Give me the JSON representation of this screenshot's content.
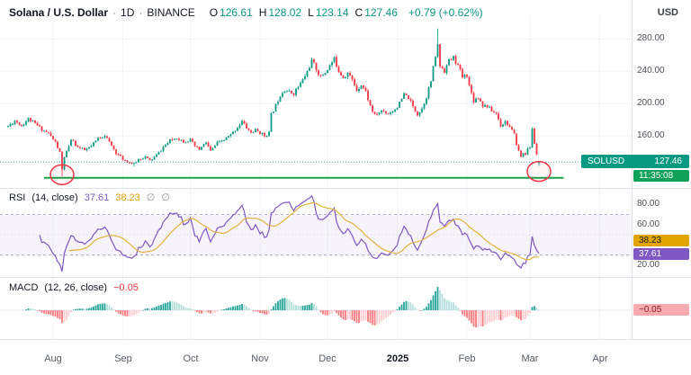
{
  "header": {
    "symbol_title": "Solana / U.S. Dollar",
    "separator": "·",
    "interval": "1D",
    "exchange": "BINANCE",
    "ohlc": [
      {
        "label": "O",
        "value": "126.61"
      },
      {
        "label": "H",
        "value": "128.02"
      },
      {
        "label": "L",
        "value": "123.14"
      },
      {
        "label": "C",
        "value": "127.46"
      }
    ],
    "change": "+0.79 (+0.62%)",
    "currency_button": "USD"
  },
  "price_axis": {
    "ticks": [
      280,
      240,
      200,
      160
    ],
    "price_label": {
      "symbol": "SOLUSD",
      "price": "127.46"
    },
    "countdown": "11:35:08"
  },
  "rsi_panel": {
    "title": "RSI",
    "params": "(14, close)",
    "value": "37.61",
    "ma_value": "38.23",
    "empty_values": [
      "∅",
      "∅"
    ],
    "axis_ticks": [
      80,
      60,
      20
    ],
    "badges": {
      "ma": "38.23",
      "rsi": "37.61"
    }
  },
  "macd_panel": {
    "title": "MACD",
    "params": "(12, 26, close)",
    "value": "−0.05",
    "badge": "−0.05"
  },
  "time_axis": {
    "labels": [
      {
        "label": "Aug",
        "day": 20
      },
      {
        "label": "Sep",
        "day": 51
      },
      {
        "label": "Oct",
        "day": 81
      },
      {
        "label": "Nov",
        "day": 112
      },
      {
        "label": "Dec",
        "day": 142
      },
      {
        "label": "2025",
        "day": 173,
        "bold": true
      },
      {
        "label": "Feb",
        "day": 204
      },
      {
        "label": "Mar",
        "day": 232
      },
      {
        "label": "Apr",
        "day": 263
      }
    ]
  },
  "colors": {
    "up": "#089981",
    "down": "#F23645",
    "rsi": "#7E57C2",
    "rsi_ma": "#E3B341",
    "support": "#16A34A",
    "circle": "#F23645",
    "macd_grow_above": "#26A69A",
    "macd_fall_above": "#B2DFDB",
    "macd_grow_below": "#FFCDD2",
    "macd_fall_below": "#F77C80",
    "badge_price_bg": "#089981",
    "badge_countdown_bg": "#0FA05A",
    "badge_rsi_ma_bg": "#E2A400",
    "badge_rsi_bg": "#7E57C2",
    "badge_macd_bg": "#F5ABB0"
  },
  "chart_data": {
    "type": "candlestick",
    "symbol": "SOLUSD",
    "exchange": "BINANCE",
    "interval": "1D",
    "days": 237,
    "start_date_hint": "mid-July (day 0) through early March (day 236)",
    "price_range": [
      100,
      295
    ],
    "price_anchors": [
      [
        0,
        172
      ],
      [
        3,
        179
      ],
      [
        6,
        173
      ],
      [
        9,
        181
      ],
      [
        12,
        175
      ],
      [
        15,
        168
      ],
      [
        18,
        163
      ],
      [
        21,
        152
      ],
      [
        23,
        139
      ],
      [
        24,
        118
      ],
      [
        25,
        134
      ],
      [
        27,
        146
      ],
      [
        28,
        156
      ],
      [
        31,
        146
      ],
      [
        34,
        142
      ],
      [
        37,
        147
      ],
      [
        40,
        157
      ],
      [
        43,
        161
      ],
      [
        45,
        152
      ],
      [
        48,
        139
      ],
      [
        51,
        131
      ],
      [
        54,
        127
      ],
      [
        56,
        125
      ],
      [
        58,
        131
      ],
      [
        61,
        134
      ],
      [
        63,
        129
      ],
      [
        66,
        136
      ],
      [
        69,
        146
      ],
      [
        72,
        154
      ],
      [
        75,
        158
      ],
      [
        78,
        153
      ],
      [
        81,
        155
      ],
      [
        83,
        147
      ],
      [
        85,
        143
      ],
      [
        88,
        152
      ],
      [
        90,
        141
      ],
      [
        93,
        151
      ],
      [
        96,
        155
      ],
      [
        99,
        161
      ],
      [
        102,
        171
      ],
      [
        104,
        178
      ],
      [
        106,
        170
      ],
      [
        108,
        164
      ],
      [
        110,
        167
      ],
      [
        112,
        164
      ],
      [
        114,
        160
      ],
      [
        116,
        164
      ],
      [
        117,
        186
      ],
      [
        119,
        198
      ],
      [
        121,
        211
      ],
      [
        123,
        218
      ],
      [
        125,
        214
      ],
      [
        127,
        213
      ],
      [
        129,
        221
      ],
      [
        131,
        229
      ],
      [
        133,
        240
      ],
      [
        135,
        253
      ],
      [
        137,
        243
      ],
      [
        139,
        233
      ],
      [
        141,
        239
      ],
      [
        143,
        247
      ],
      [
        145,
        255
      ],
      [
        147,
        241
      ],
      [
        149,
        233
      ],
      [
        151,
        238
      ],
      [
        153,
        229
      ],
      [
        155,
        217
      ],
      [
        157,
        224
      ],
      [
        159,
        215
      ],
      [
        161,
        197
      ],
      [
        163,
        185
      ],
      [
        166,
        191
      ],
      [
        169,
        188
      ],
      [
        172,
        193
      ],
      [
        174,
        200
      ],
      [
        176,
        211
      ],
      [
        178,
        207
      ],
      [
        180,
        196
      ],
      [
        182,
        187
      ],
      [
        184,
        194
      ],
      [
        186,
        209
      ],
      [
        188,
        228
      ],
      [
        190,
        259
      ],
      [
        191,
        272
      ],
      [
        192,
        247
      ],
      [
        194,
        241
      ],
      [
        196,
        253
      ],
      [
        198,
        257
      ],
      [
        200,
        247
      ],
      [
        202,
        233
      ],
      [
        204,
        236
      ],
      [
        205,
        222
      ],
      [
        207,
        204
      ],
      [
        209,
        208
      ],
      [
        211,
        198
      ],
      [
        213,
        197
      ],
      [
        215,
        191
      ],
      [
        217,
        188
      ],
      [
        219,
        173
      ],
      [
        221,
        178
      ],
      [
        223,
        171
      ],
      [
        225,
        161
      ],
      [
        226,
        150
      ],
      [
        227,
        141
      ],
      [
        228,
        134
      ],
      [
        229,
        139
      ],
      [
        230,
        138
      ],
      [
        231,
        143
      ],
      [
        232,
        146
      ],
      [
        233,
        168
      ],
      [
        234,
        151
      ],
      [
        235,
        137
      ],
      [
        236,
        127.46
      ]
    ],
    "wick_overrides": [
      {
        "day": 24,
        "low": 110
      },
      {
        "day": 56,
        "low": 122
      },
      {
        "day": 191,
        "high": 293
      }
    ],
    "last_candle": {
      "open": 126.61,
      "high": 128.02,
      "low": 123.14,
      "close": 127.46
    },
    "support_line": {
      "price": 108,
      "from_day": 16,
      "to_day": 247
    },
    "highlight_circles": [
      {
        "day": 24,
        "price": 112
      },
      {
        "day": 236,
        "price": 116
      }
    ],
    "indicators": {
      "rsi": {
        "length": 14,
        "source": "close",
        "last": 37.61,
        "ma_last": 38.23,
        "levels": {
          "upper": 70,
          "middle": 50,
          "lower": 30
        }
      },
      "macd": {
        "fast": 12,
        "slow": 26,
        "source": "close",
        "signal": 9,
        "last_hist": -0.05
      }
    }
  }
}
